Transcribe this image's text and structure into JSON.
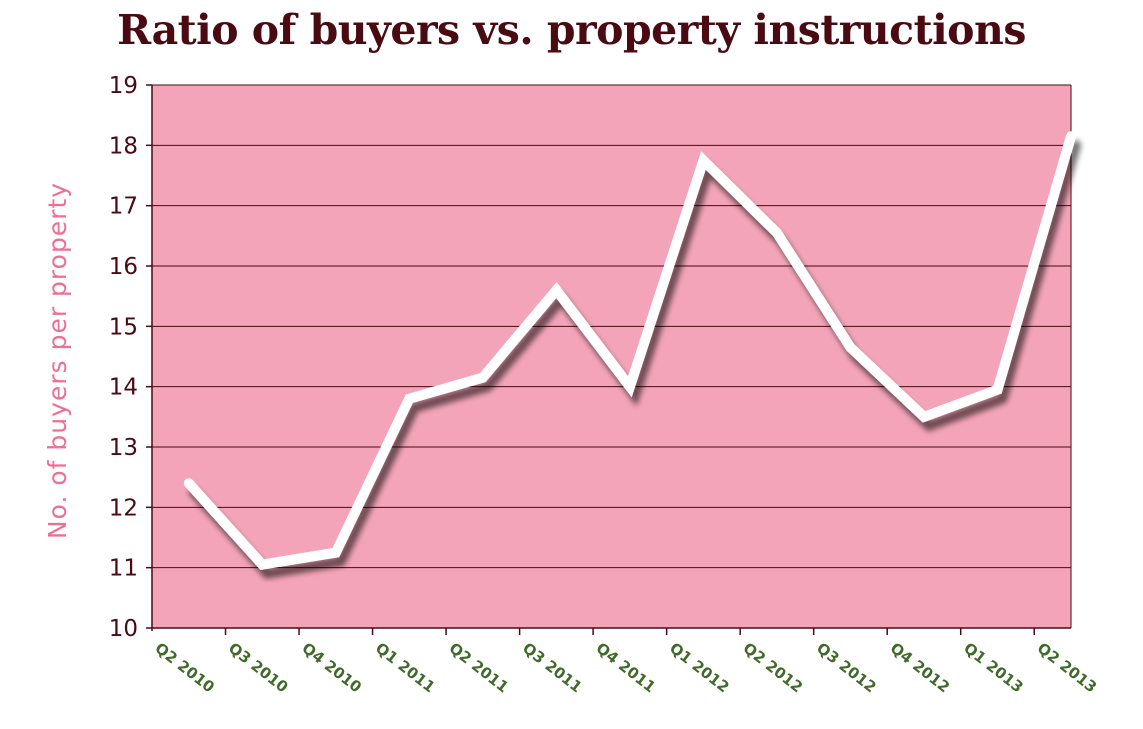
{
  "chart_data": {
    "type": "line",
    "title": "Ratio of buyers vs. property instructions",
    "xlabel": "",
    "ylabel": "No. of buyers per property",
    "categories": [
      "Q2 2010",
      "Q3 2010",
      "Q4 2010",
      "Q1 2011",
      "Q2 2011",
      "Q3 2011",
      "Q4 2011",
      "Q1 2012",
      "Q2 2012",
      "Q3 2012",
      "Q4 2012",
      "Q1 2013",
      "Q2 2013"
    ],
    "series": [
      {
        "values": [
          12.4,
          11.05,
          11.25,
          13.8,
          14.15,
          15.6,
          14.0,
          17.75,
          16.55,
          14.65,
          13.5,
          13.95,
          18.15
        ]
      }
    ],
    "ylim": [
      10,
      19
    ],
    "yticks": [
      10,
      11,
      12,
      13,
      14,
      15,
      16,
      17,
      18,
      19
    ],
    "grid": true,
    "legend": "none",
    "colors": {
      "plot_background": "#f4a4b8",
      "line": "#ffffff",
      "gridline": "#4a0a12",
      "title": "#4a0a12",
      "ylabel": "#ee6f95",
      "xtick_labels": "#3f6a2a"
    }
  }
}
